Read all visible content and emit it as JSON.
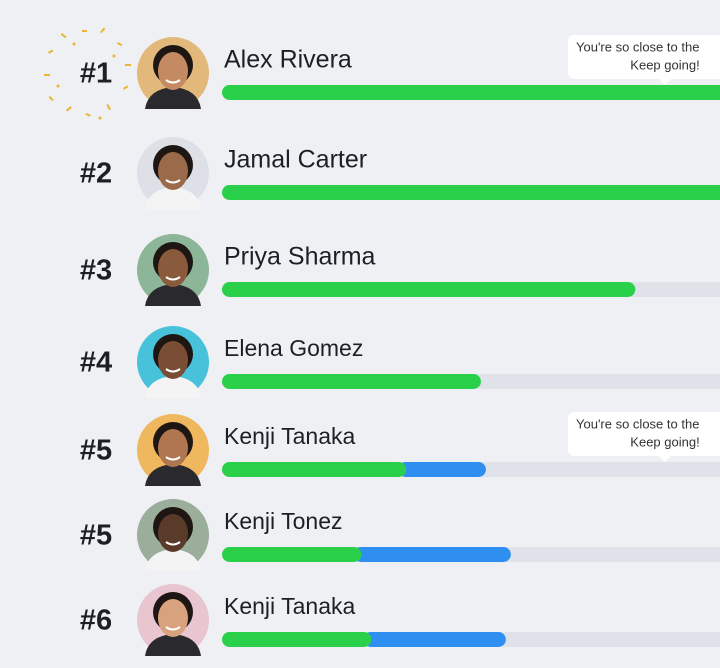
{
  "colors": {
    "progress": "#2bd04a",
    "bonus": "#2f8ff0",
    "track": "#dfe3e9",
    "background": "#eef0f4"
  },
  "rows": [
    {
      "rank": "#1",
      "name": "Alex Rivera",
      "progress": 100,
      "tooltip": [
        "You're so close to the",
        "Keep going!"
      ]
    },
    {
      "rank": "#2",
      "name": "Jamal Carter",
      "progress": 100
    },
    {
      "rank": "#3",
      "name": "Priya Sharma",
      "progress": 83
    },
    {
      "rank": "#4",
      "name": "Elena Gomez",
      "progress": 52
    },
    {
      "rank": "#5",
      "name": "Kenji Tanaka",
      "progress": 37,
      "bonus": 16,
      "tooltip": [
        "You're so close to the",
        "Keep going!"
      ]
    },
    {
      "rank": "#5",
      "name": "Kenji Tonez",
      "progress": 28,
      "bonus": 30
    },
    {
      "rank": "#6",
      "name": "Kenji Tanaka",
      "progress": 30,
      "bonus": 27
    }
  ]
}
